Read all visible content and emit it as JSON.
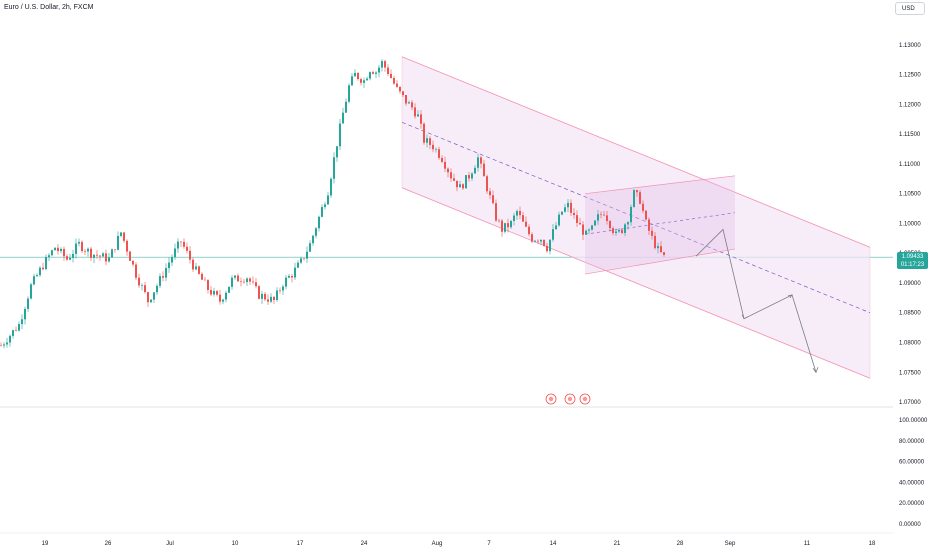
{
  "header": {
    "symbol_title": "Euro / U.S. Dollar, 2h, FXCM",
    "currency_button": "USD"
  },
  "price_tag": {
    "price": "1.09433",
    "countdown": "01:17:23"
  },
  "colors": {
    "up": "#26a69a",
    "down": "#ef5350",
    "channel": "#f48fb1",
    "fill": "#f3e5f5"
  },
  "chart_data": {
    "type": "candlestick",
    "x_ticks": [
      "19",
      "26",
      "Jul",
      "10",
      "17",
      "24",
      "Aug",
      "7",
      "14",
      "21",
      "28",
      "Sep",
      "11",
      "18"
    ],
    "y_ticks": [
      "1.13000",
      "1.12500",
      "1.12000",
      "1.11500",
      "1.11000",
      "1.10500",
      "1.10000",
      "1.09500",
      "1.09000",
      "1.08500",
      "1.08000",
      "1.07500",
      "1.07000"
    ],
    "ylim": [
      1.0695,
      1.1325
    ],
    "last_price": 1.09433,
    "close_path": [
      [
        0,
        1.0795
      ],
      [
        6,
        1.083
      ],
      [
        10,
        1.0895
      ],
      [
        14,
        1.093
      ],
      [
        18,
        1.096
      ],
      [
        22,
        1.094
      ],
      [
        26,
        1.0965
      ],
      [
        30,
        1.095
      ],
      [
        36,
        1.094
      ],
      [
        40,
        1.0985
      ],
      [
        45,
        1.0915
      ],
      [
        49,
        1.087
      ],
      [
        53,
        1.0905
      ],
      [
        57,
        1.0945
      ],
      [
        60,
        1.097
      ],
      [
        65,
        1.092
      ],
      [
        69,
        1.089
      ],
      [
        73,
        1.087
      ],
      [
        77,
        1.0905
      ],
      [
        82,
        1.091
      ],
      [
        86,
        1.088
      ],
      [
        91,
        1.087
      ],
      [
        94,
        1.09
      ],
      [
        97,
        1.0915
      ],
      [
        100,
        1.0935
      ],
      [
        103,
        1.0965
      ],
      [
        106,
        1.101
      ],
      [
        109,
        1.1055
      ],
      [
        112,
        1.1135
      ],
      [
        114,
        1.1185
      ],
      [
        116,
        1.123
      ],
      [
        118,
        1.125
      ],
      [
        121,
        1.124
      ],
      [
        123,
        1.126
      ],
      [
        125,
        1.1255
      ],
      [
        127,
        1.127
      ],
      [
        129,
        1.1255
      ],
      [
        132,
        1.1225
      ],
      [
        135,
        1.1205
      ],
      [
        137,
        1.1195
      ],
      [
        139,
        1.118
      ],
      [
        141,
        1.114
      ],
      [
        144,
        1.113
      ],
      [
        147,
        1.111
      ],
      [
        150,
        1.108
      ],
      [
        153,
        1.106
      ],
      [
        156,
        1.108
      ],
      [
        159,
        1.111
      ],
      [
        162,
        1.106
      ],
      [
        165,
        1.101
      ],
      [
        167,
        1.099
      ],
      [
        170,
        1.1
      ],
      [
        172,
        1.102
      ],
      [
        175,
        1.099
      ],
      [
        177,
        1.0975
      ],
      [
        180,
        1.0975
      ],
      [
        182,
        1.096
      ],
      [
        184,
        1.0985
      ],
      [
        187,
        1.102
      ],
      [
        189,
        1.103
      ],
      [
        191,
        1.101
      ],
      [
        193,
        1.0995
      ],
      [
        195,
        1.098
      ],
      [
        197,
        1.099
      ],
      [
        199,
        1.101
      ],
      [
        201,
        1.102
      ],
      [
        203,
        1.1
      ],
      [
        205,
        1.098
      ],
      [
        207,
        1.099
      ],
      [
        209,
        1.101
      ],
      [
        211,
        1.105
      ],
      [
        213,
        1.104
      ],
      [
        215,
        1.1
      ],
      [
        217,
        1.0975
      ],
      [
        219,
        1.0955
      ],
      [
        221,
        1.0943
      ]
    ],
    "channel": {
      "upper": [
        [
          134,
          1.128
        ],
        [
          290,
          1.096
        ]
      ],
      "lower": [
        [
          134,
          1.106
        ],
        [
          290,
          1.074
        ]
      ],
      "mid": [
        [
          134,
          1.117
        ],
        [
          290,
          1.085
        ]
      ]
    },
    "inner_box": {
      "upper": [
        [
          195,
          1.105
        ],
        [
          245,
          1.108
        ]
      ],
      "lower": [
        [
          195,
          1.0915
        ],
        [
          245,
          1.0957
        ]
      ],
      "mid": [
        [
          195,
          1.0982
        ],
        [
          245,
          1.1018
        ]
      ]
    },
    "projection": [
      [
        232,
        1.0945
      ],
      [
        241,
        1.099
      ],
      [
        248,
        1.084
      ],
      [
        264,
        1.088
      ],
      [
        272,
        1.075
      ]
    ],
    "lower_pane": {
      "ylim": [
        0,
        100
      ],
      "y_ticks": [
        "100.00000",
        "80.00000",
        "60.00000",
        "40.00000",
        "20.00000",
        "0.00000"
      ]
    }
  }
}
